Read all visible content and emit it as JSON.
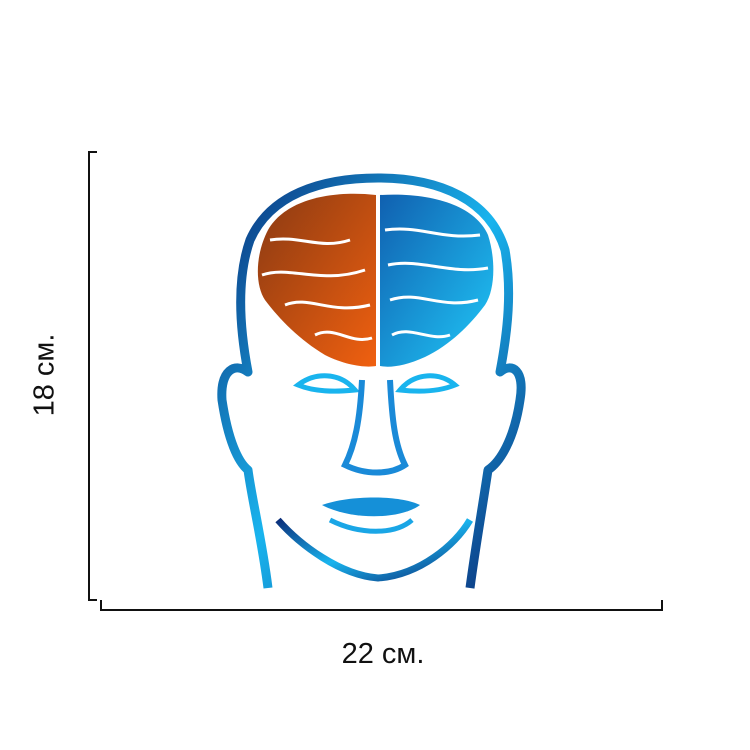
{
  "product_image": {
    "subject": "head-with-brain-hemispheres",
    "colors": {
      "left_hemisphere": "#d9540a",
      "right_hemisphere": "#1aa6e6",
      "outline_dark": "#0b2f7a",
      "outline_light": "#19b4ee"
    }
  },
  "dimensions": {
    "width_label": "22 см.",
    "height_label": "18 см."
  }
}
